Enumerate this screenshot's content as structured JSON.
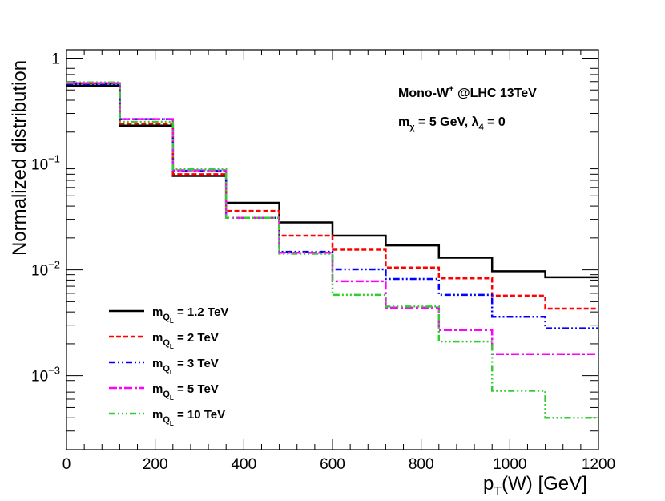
{
  "chart_data": {
    "type": "step",
    "xlabel": {
      "main": "p",
      "sub": "T",
      "rest": "(W) [GeV]"
    },
    "ylabel": "Normalized distribution",
    "xlim": [
      0,
      1200
    ],
    "ylim": [
      0.0002,
      1.2
    ],
    "yscale": "log",
    "x_ticks": [
      {
        "value": 0,
        "label": "0"
      },
      {
        "value": 200,
        "label": "200"
      },
      {
        "value": 400,
        "label": "400"
      },
      {
        "value": 600,
        "label": "600"
      },
      {
        "value": 800,
        "label": "800"
      },
      {
        "value": 1000,
        "label": "1000"
      },
      {
        "value": 1200,
        "label": "1200"
      }
    ],
    "y_ticks": [
      {
        "value": 1,
        "base": "1",
        "exp": ""
      },
      {
        "value": 0.1,
        "base": "10",
        "exp": "−1"
      },
      {
        "value": 0.01,
        "base": "10",
        "exp": "−2"
      },
      {
        "value": 0.001,
        "base": "10",
        "exp": "−3"
      }
    ],
    "bin_edges": [
      0,
      120,
      240,
      360,
      480,
      600,
      720,
      840,
      960,
      1080,
      1200
    ],
    "annotations": {
      "line1": {
        "main": "Mono-W",
        "sup": "+",
        "rest": " @LHC 13TeV"
      },
      "line2": {
        "m": "m",
        "msub": "χ",
        "mid": " = 5 GeV,  ",
        "lambda": "λ",
        "lsub": "4",
        "end": " = 0"
      }
    },
    "series": [
      {
        "name": "m_QL = 1.2 TeV",
        "prefix": "m",
        "sub": "Q",
        "subsub": "L",
        "suffix": " = 1.2 TeV",
        "color": "#000000",
        "dash": "",
        "width": 2.5,
        "values": [
          0.55,
          0.23,
          0.077,
          0.043,
          0.028,
          0.021,
          0.017,
          0.013,
          0.0097,
          0.0085
        ]
      },
      {
        "name": "m_QL = 2 TeV",
        "prefix": "m",
        "sub": "Q",
        "subsub": "L",
        "suffix": " = 2 TeV",
        "color": "#ff0000",
        "dash": "6,3",
        "width": 2.5,
        "values": [
          0.58,
          0.24,
          0.08,
          0.036,
          0.021,
          0.0155,
          0.0105,
          0.0083,
          0.0057,
          0.0043
        ]
      },
      {
        "name": "m_QL = 3 TeV",
        "prefix": "m",
        "sub": "Q",
        "subsub": "L",
        "suffix": " = 3 TeV",
        "color": "#0000ff",
        "dash": "8,3,2,3,2,3",
        "width": 2.5,
        "values": [
          0.57,
          0.265,
          0.086,
          0.031,
          0.0148,
          0.0101,
          0.0082,
          0.0058,
          0.0036,
          0.0028
        ]
      },
      {
        "name": "m_QL = 5 TeV",
        "prefix": "m",
        "sub": "Q",
        "subsub": "L",
        "suffix": " = 5 TeV",
        "color": "#ff00ff",
        "dash": "10,3,3,3",
        "width": 2.5,
        "values": [
          0.58,
          0.265,
          0.087,
          0.031,
          0.0145,
          0.0078,
          0.0044,
          0.0027,
          0.0016,
          0.0016
        ]
      },
      {
        "name": "m_QL = 10 TeV",
        "prefix": "m",
        "sub": "Q",
        "subsub": "L",
        "suffix": " = 10 TeV",
        "color": "#33cc33",
        "dash": "8,3,2,3,2,3,2,3",
        "width": 2.5,
        "values": [
          0.59,
          0.25,
          0.089,
          0.031,
          0.0142,
          0.0058,
          0.0045,
          0.0021,
          0.00072,
          0.0004
        ]
      }
    ]
  }
}
